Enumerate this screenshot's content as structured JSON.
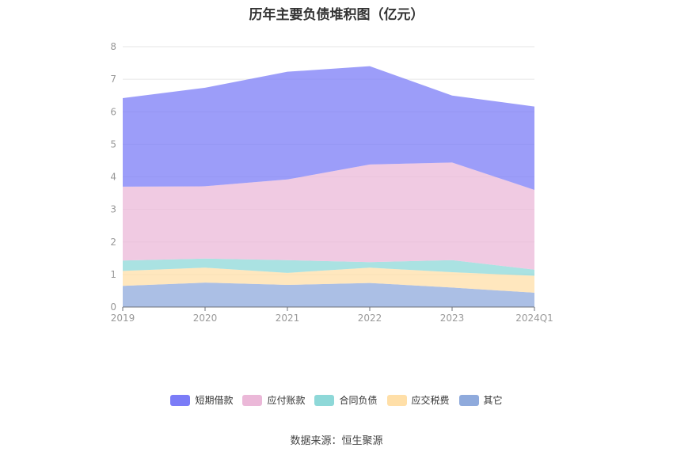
{
  "title": "历年主要负债堆积图（亿元）",
  "source": "数据来源：恒生聚源",
  "chart_data": {
    "type": "area",
    "stacked": true,
    "categories": [
      "2019",
      "2020",
      "2021",
      "2022",
      "2023",
      "2024Q1"
    ],
    "ylim": [
      0,
      8
    ],
    "yticks": [
      0,
      1,
      2,
      3,
      4,
      5,
      6,
      7,
      8
    ],
    "grid": true,
    "legend_position": "bottom",
    "series": [
      {
        "name": "其它",
        "color": "#8FAADC",
        "values": [
          0.65,
          0.75,
          0.68,
          0.74,
          0.6,
          0.44
        ]
      },
      {
        "name": "应交税费",
        "color": "#FFDFA8",
        "values": [
          0.46,
          0.46,
          0.37,
          0.47,
          0.47,
          0.52
        ]
      },
      {
        "name": "合同负债",
        "color": "#8ED8D8",
        "values": [
          0.32,
          0.28,
          0.39,
          0.17,
          0.37,
          0.19
        ]
      },
      {
        "name": "应付账款",
        "color": "#EBB8D8",
        "values": [
          2.27,
          2.22,
          2.48,
          3.0,
          3.0,
          2.45
        ]
      },
      {
        "name": "短期借款",
        "color": "#7B7CF7",
        "values": [
          2.72,
          3.03,
          3.31,
          3.02,
          2.06,
          2.56
        ]
      }
    ],
    "legend_order": [
      "短期借款",
      "应付账款",
      "合同负债",
      "应交税费",
      "其它"
    ]
  }
}
